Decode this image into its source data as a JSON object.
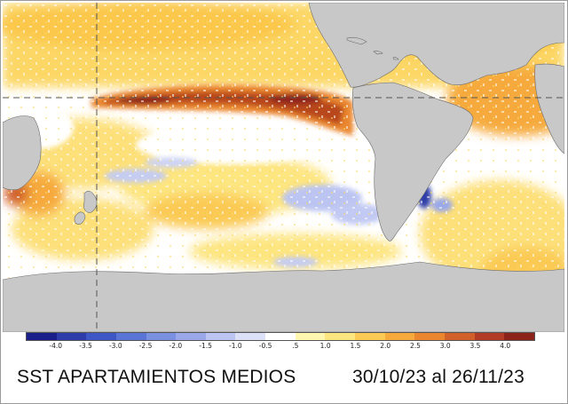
{
  "caption": {
    "title": "SST APARTAMIENTOS MEDIOS",
    "date_range": "30/10/23 al 26/11/23"
  },
  "colorbar": {
    "labels": [
      "-4.0",
      "-3.5",
      "-3.0",
      "-2.5",
      "-2.0",
      "-1.5",
      "-1.0",
      "-0.5",
      ".5",
      "1.0",
      "1.5",
      "2.0",
      "2.5",
      "3.0",
      "3.5",
      "4.0"
    ],
    "colors": [
      "#1a1f8a",
      "#2d3ca8",
      "#3f57c4",
      "#5a75d6",
      "#7a90e0",
      "#9aa8ea",
      "#bcc5f2",
      "#dde1f8",
      "#ffffff",
      "#fff6b0",
      "#fde580",
      "#fbca55",
      "#f6aa3c",
      "#ea862d",
      "#d1602a",
      "#b13b24",
      "#8c241c"
    ]
  },
  "map": {
    "land_color": "#c8c8c8",
    "ocean_neutral_color": "#ffffff",
    "gridline_style": "dashed",
    "features": [
      "equator-gridline",
      "dateline-gridline",
      "south-america",
      "north-america",
      "africa",
      "australia",
      "new-zealand",
      "antarctica",
      "el-nino-warm-anomaly"
    ]
  }
}
